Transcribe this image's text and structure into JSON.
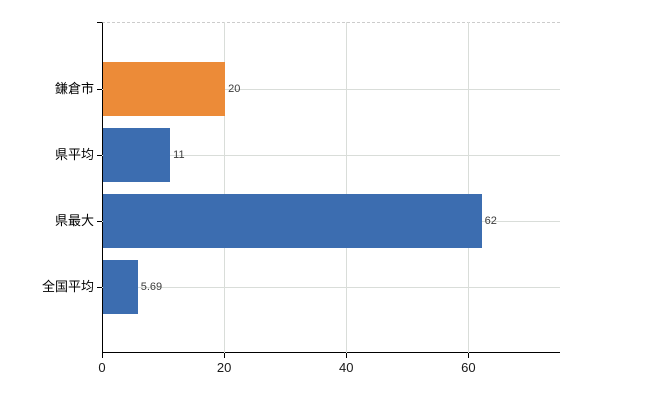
{
  "chart_data": {
    "type": "bar",
    "orientation": "horizontal",
    "title": "",
    "xlabel": "",
    "ylabel": "",
    "categories": [
      "鎌倉市",
      "県平均",
      "県最大",
      "全国平均"
    ],
    "values": [
      20,
      11,
      62,
      5.69
    ],
    "value_labels": [
      "20",
      "11",
      "62",
      "5.69"
    ],
    "bar_colors": [
      "#EC8B38",
      "#3C6DB0",
      "#3C6DB0",
      "#3C6DB0"
    ],
    "xlim": [
      0,
      75
    ],
    "x_ticks": [
      0,
      20,
      40,
      60
    ],
    "x_tick_labels": [
      "0",
      "20",
      "40",
      "60"
    ],
    "grid": "on",
    "legend": "none"
  },
  "colors": {
    "bar_orange": "#EC8B38",
    "bar_blue": "#3C6DB0",
    "gridline": "#d9ddd9",
    "axis_line": "#000000",
    "top_border_dashed": "#cccccc",
    "value_label_text": "#3c3c3c",
    "axis_label_text": "#1a1a1a",
    "background": "#ffffff"
  }
}
